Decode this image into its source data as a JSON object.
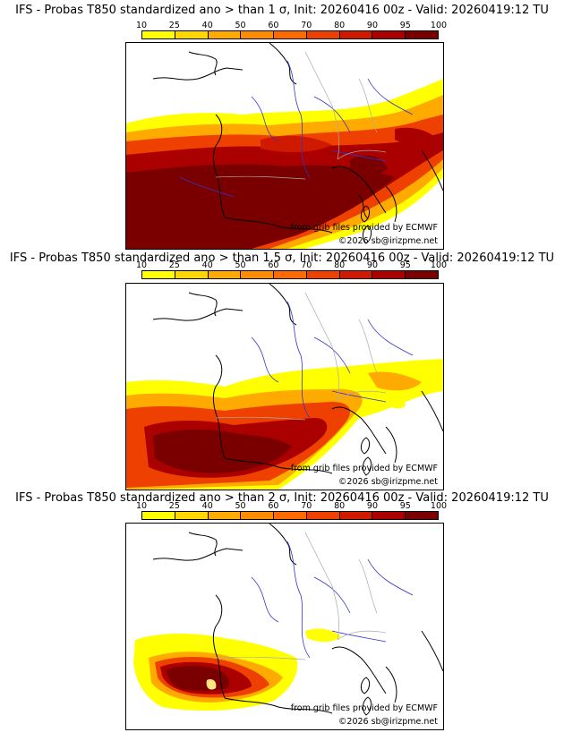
{
  "panels": [
    {
      "title": "IFS - Probas T850  standardized ano > than 1 σ, Init: 20260416 00z - Valid: 20260419:12 TU",
      "colorbar": {
        "ticks": [
          "10",
          "25",
          "40",
          "50",
          "60",
          "70",
          "80",
          "90",
          "95",
          "100"
        ]
      },
      "source": "from grib files provided by ECMWF",
      "copyright": "©2026 sb@irizpme.net"
    },
    {
      "title": "IFS - Probas T850  standardized ano > than 1.5 σ, Init: 20260416 00z - Valid: 20260419:12 TU",
      "colorbar": {
        "ticks": [
          "10",
          "25",
          "40",
          "50",
          "60",
          "70",
          "80",
          "90",
          "95",
          "100"
        ]
      },
      "source": "from grib files provided by ECMWF",
      "copyright": "©2026 sb@irizpme.net"
    },
    {
      "title": "IFS - Probas T850  standardized ano > than 2 σ, Init: 20260416 00z - Valid: 20260419:12 TU",
      "colorbar": {
        "ticks": [
          "10",
          "25",
          "40",
          "50",
          "60",
          "70",
          "80",
          "90",
          "95",
          "100"
        ]
      },
      "source": "from grib files provided by ECMWF",
      "copyright": "©2026 sb@irizpme.net"
    }
  ],
  "colors": {
    "scale": [
      "#ffff00",
      "#ffd700",
      "#ffaa00",
      "#ff8c00",
      "#ff6a00",
      "#ee4000",
      "#d01a00",
      "#aa0000",
      "#7a0000"
    ],
    "coast": "#000000",
    "rivers": "#3333cc",
    "borders": "#aaaaaa"
  }
}
